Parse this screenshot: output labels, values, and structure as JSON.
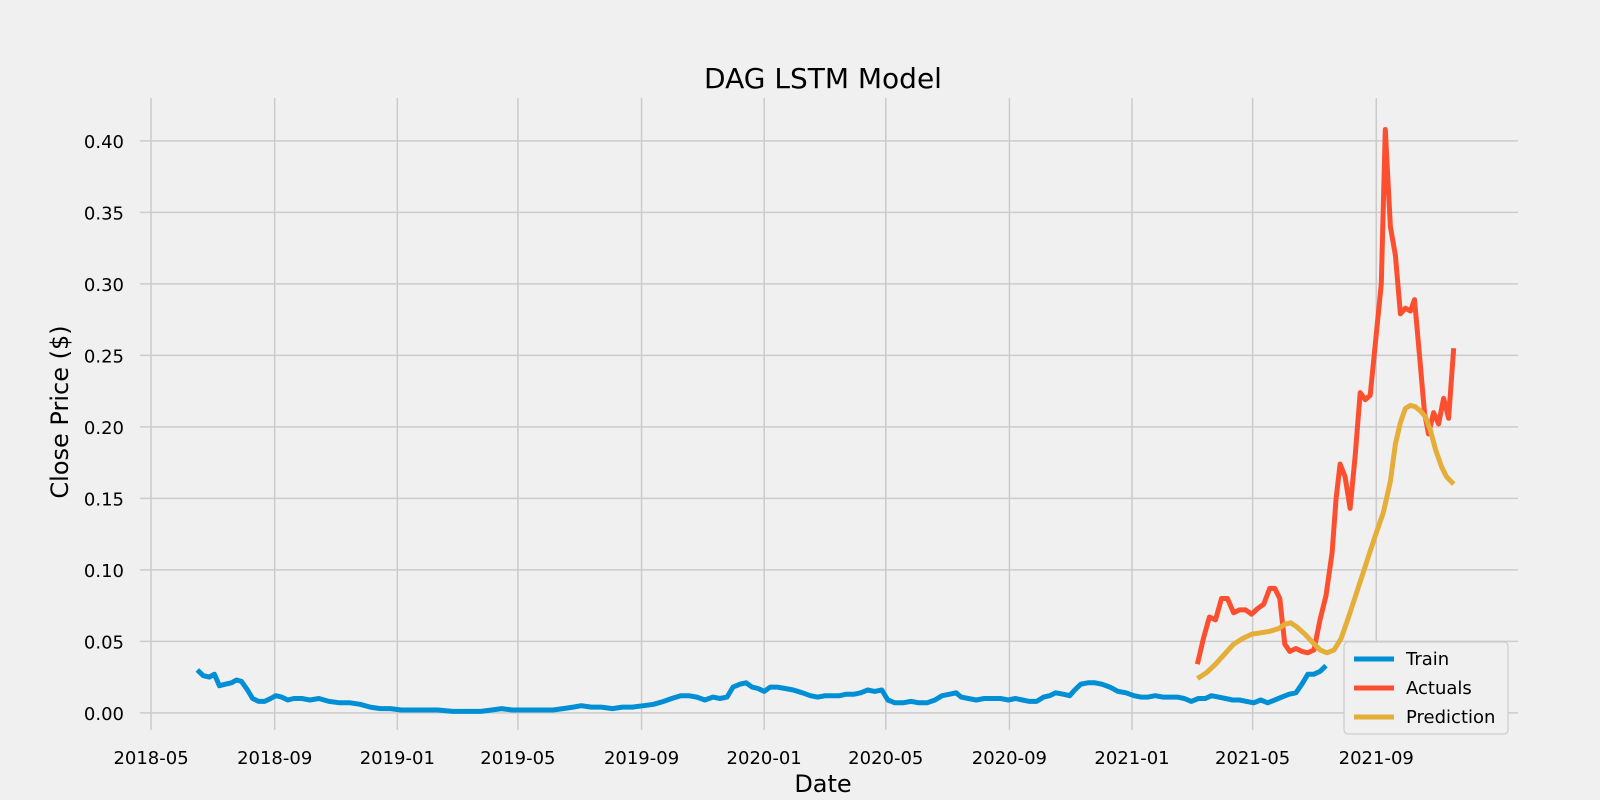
{
  "chart_data": {
    "type": "line",
    "title": "DAG LSTM Model",
    "xlabel": "Date",
    "ylabel": "Close Price ($)",
    "x_ticks": [
      "2018-05",
      "2018-09",
      "2019-01",
      "2019-05",
      "2019-09",
      "2020-01",
      "2020-05",
      "2020-09",
      "2021-01",
      "2021-05",
      "2021-09"
    ],
    "y_ticks": [
      "0.00",
      "0.05",
      "0.10",
      "0.15",
      "0.20",
      "0.25",
      "0.30",
      "0.35",
      "0.40"
    ],
    "xlim": [
      "2018-04-20",
      "2022-01-20"
    ],
    "ylim": [
      -0.012,
      0.43
    ],
    "grid": true,
    "legend_position": "lower-right",
    "colors": {
      "background": "#f0f0f0",
      "grid": "#cbcbcb"
    },
    "series": [
      {
        "name": "Train",
        "color": "#008fd5",
        "points": [
          [
            "2018-06-16",
            0.03
          ],
          [
            "2018-06-22",
            0.026
          ],
          [
            "2018-06-28",
            0.025
          ],
          [
            "2018-07-03",
            0.027
          ],
          [
            "2018-07-08",
            0.019
          ],
          [
            "2018-07-14",
            0.02
          ],
          [
            "2018-07-20",
            0.021
          ],
          [
            "2018-07-25",
            0.023
          ],
          [
            "2018-07-30",
            0.022
          ],
          [
            "2018-08-05",
            0.016
          ],
          [
            "2018-08-10",
            0.01
          ],
          [
            "2018-08-16",
            0.008
          ],
          [
            "2018-08-22",
            0.008
          ],
          [
            "2018-08-28",
            0.01
          ],
          [
            "2018-09-02",
            0.012
          ],
          [
            "2018-09-08",
            0.011
          ],
          [
            "2018-09-14",
            0.009
          ],
          [
            "2018-09-20",
            0.01
          ],
          [
            "2018-09-28",
            0.01
          ],
          [
            "2018-10-06",
            0.009
          ],
          [
            "2018-10-15",
            0.01
          ],
          [
            "2018-10-25",
            0.008
          ],
          [
            "2018-11-05",
            0.007
          ],
          [
            "2018-11-15",
            0.007
          ],
          [
            "2018-11-25",
            0.006
          ],
          [
            "2018-12-05",
            0.004
          ],
          [
            "2018-12-15",
            0.003
          ],
          [
            "2018-12-25",
            0.003
          ],
          [
            "2019-01-05",
            0.002
          ],
          [
            "2019-01-15",
            0.002
          ],
          [
            "2019-01-25",
            0.002
          ],
          [
            "2019-02-10",
            0.002
          ],
          [
            "2019-02-25",
            0.001
          ],
          [
            "2019-03-10",
            0.001
          ],
          [
            "2019-03-25",
            0.001
          ],
          [
            "2019-04-05",
            0.002
          ],
          [
            "2019-04-15",
            0.003
          ],
          [
            "2019-04-25",
            0.002
          ],
          [
            "2019-05-10",
            0.002
          ],
          [
            "2019-05-25",
            0.002
          ],
          [
            "2019-06-05",
            0.002
          ],
          [
            "2019-06-15",
            0.003
          ],
          [
            "2019-06-25",
            0.004
          ],
          [
            "2019-07-03",
            0.005
          ],
          [
            "2019-07-13",
            0.004
          ],
          [
            "2019-07-23",
            0.004
          ],
          [
            "2019-08-03",
            0.003
          ],
          [
            "2019-08-13",
            0.004
          ],
          [
            "2019-08-23",
            0.004
          ],
          [
            "2019-09-03",
            0.005
          ],
          [
            "2019-09-13",
            0.006
          ],
          [
            "2019-09-23",
            0.008
          ],
          [
            "2019-10-01",
            0.01
          ],
          [
            "2019-10-10",
            0.012
          ],
          [
            "2019-10-18",
            0.012
          ],
          [
            "2019-10-26",
            0.011
          ],
          [
            "2019-11-03",
            0.009
          ],
          [
            "2019-11-11",
            0.011
          ],
          [
            "2019-11-18",
            0.01
          ],
          [
            "2019-11-25",
            0.011
          ],
          [
            "2019-12-01",
            0.018
          ],
          [
            "2019-12-08",
            0.02
          ],
          [
            "2019-12-14",
            0.021
          ],
          [
            "2019-12-20",
            0.018
          ],
          [
            "2019-12-26",
            0.017
          ],
          [
            "2020-01-01",
            0.015
          ],
          [
            "2020-01-07",
            0.018
          ],
          [
            "2020-01-14",
            0.018
          ],
          [
            "2020-01-22",
            0.017
          ],
          [
            "2020-01-30",
            0.016
          ],
          [
            "2020-02-08",
            0.014
          ],
          [
            "2020-02-16",
            0.012
          ],
          [
            "2020-02-23",
            0.011
          ],
          [
            "2020-03-02",
            0.012
          ],
          [
            "2020-03-09",
            0.012
          ],
          [
            "2020-03-16",
            0.012
          ],
          [
            "2020-03-22",
            0.013
          ],
          [
            "2020-03-30",
            0.013
          ],
          [
            "2020-04-06",
            0.014
          ],
          [
            "2020-04-13",
            0.016
          ],
          [
            "2020-04-20",
            0.015
          ],
          [
            "2020-04-27",
            0.016
          ],
          [
            "2020-05-03",
            0.009
          ],
          [
            "2020-05-10",
            0.007
          ],
          [
            "2020-05-18",
            0.007
          ],
          [
            "2020-05-26",
            0.008
          ],
          [
            "2020-06-03",
            0.007
          ],
          [
            "2020-06-11",
            0.007
          ],
          [
            "2020-06-19",
            0.009
          ],
          [
            "2020-06-26",
            0.012
          ],
          [
            "2020-07-03",
            0.013
          ],
          [
            "2020-07-10",
            0.014
          ],
          [
            "2020-07-15",
            0.011
          ],
          [
            "2020-07-22",
            0.01
          ],
          [
            "2020-07-30",
            0.009
          ],
          [
            "2020-08-07",
            0.01
          ],
          [
            "2020-08-15",
            0.01
          ],
          [
            "2020-08-23",
            0.01
          ],
          [
            "2020-08-31",
            0.009
          ],
          [
            "2020-09-07",
            0.01
          ],
          [
            "2020-09-14",
            0.009
          ],
          [
            "2020-09-21",
            0.008
          ],
          [
            "2020-09-28",
            0.008
          ],
          [
            "2020-10-05",
            0.011
          ],
          [
            "2020-10-11",
            0.012
          ],
          [
            "2020-10-17",
            0.014
          ],
          [
            "2020-10-25",
            0.013
          ],
          [
            "2020-10-31",
            0.012
          ],
          [
            "2020-11-05",
            0.016
          ],
          [
            "2020-11-11",
            0.02
          ],
          [
            "2020-11-18",
            0.021
          ],
          [
            "2020-11-25",
            0.021
          ],
          [
            "2020-12-02",
            0.02
          ],
          [
            "2020-12-10",
            0.018
          ],
          [
            "2020-12-18",
            0.015
          ],
          [
            "2020-12-26",
            0.014
          ],
          [
            "2021-01-03",
            0.012
          ],
          [
            "2021-01-10",
            0.011
          ],
          [
            "2021-01-17",
            0.011
          ],
          [
            "2021-01-24",
            0.012
          ],
          [
            "2021-02-01",
            0.011
          ],
          [
            "2021-02-08",
            0.011
          ],
          [
            "2021-02-15",
            0.011
          ],
          [
            "2021-02-22",
            0.01
          ],
          [
            "2021-03-01",
            0.008
          ],
          [
            "2021-03-08",
            0.01
          ],
          [
            "2021-03-15",
            0.01
          ],
          [
            "2021-03-21",
            0.012
          ],
          [
            "2021-03-28",
            0.011
          ],
          [
            "2021-04-04",
            0.01
          ],
          [
            "2021-04-11",
            0.009
          ],
          [
            "2021-04-18",
            0.009
          ],
          [
            "2021-04-25",
            0.008
          ],
          [
            "2021-05-02",
            0.007
          ],
          [
            "2021-05-09",
            0.009
          ],
          [
            "2021-05-16",
            0.007
          ],
          [
            "2021-05-23",
            0.009
          ],
          [
            "2021-05-30",
            0.011
          ],
          [
            "2021-06-06",
            0.013
          ],
          [
            "2021-06-13",
            0.014
          ],
          [
            "2021-06-19",
            0.02
          ],
          [
            "2021-06-25",
            0.027
          ],
          [
            "2021-07-01",
            0.027
          ],
          [
            "2021-07-07",
            0.029
          ],
          [
            "2021-07-13",
            0.033
          ]
        ]
      },
      {
        "name": "Actuals",
        "color": "#fc4f30",
        "points": [
          [
            "2021-03-07",
            0.034
          ],
          [
            "2021-03-13",
            0.052
          ],
          [
            "2021-03-19",
            0.067
          ],
          [
            "2021-03-25",
            0.065
          ],
          [
            "2021-03-31",
            0.08
          ],
          [
            "2021-04-06",
            0.08
          ],
          [
            "2021-04-12",
            0.07
          ],
          [
            "2021-04-18",
            0.072
          ],
          [
            "2021-04-24",
            0.072
          ],
          [
            "2021-04-30",
            0.069
          ],
          [
            "2021-05-06",
            0.073
          ],
          [
            "2021-05-12",
            0.076
          ],
          [
            "2021-05-18",
            0.087
          ],
          [
            "2021-05-23",
            0.087
          ],
          [
            "2021-05-28",
            0.08
          ],
          [
            "2021-06-02",
            0.048
          ],
          [
            "2021-06-07",
            0.043
          ],
          [
            "2021-06-13",
            0.045
          ],
          [
            "2021-06-19",
            0.043
          ],
          [
            "2021-06-25",
            0.042
          ],
          [
            "2021-07-01",
            0.044
          ],
          [
            "2021-07-07",
            0.065
          ],
          [
            "2021-07-13",
            0.082
          ],
          [
            "2021-07-19",
            0.112
          ],
          [
            "2021-07-23",
            0.15
          ],
          [
            "2021-07-27",
            0.174
          ],
          [
            "2021-08-01",
            0.165
          ],
          [
            "2021-08-06",
            0.143
          ],
          [
            "2021-08-11",
            0.18
          ],
          [
            "2021-08-16",
            0.224
          ],
          [
            "2021-08-21",
            0.219
          ],
          [
            "2021-08-26",
            0.222
          ],
          [
            "2021-09-01",
            0.265
          ],
          [
            "2021-09-06",
            0.3
          ],
          [
            "2021-09-10",
            0.408
          ],
          [
            "2021-09-15",
            0.34
          ],
          [
            "2021-09-20",
            0.32
          ],
          [
            "2021-09-25",
            0.279
          ],
          [
            "2021-09-30",
            0.283
          ],
          [
            "2021-10-05",
            0.281
          ],
          [
            "2021-10-09",
            0.289
          ],
          [
            "2021-10-14",
            0.25
          ],
          [
            "2021-10-19",
            0.21
          ],
          [
            "2021-10-23",
            0.195
          ],
          [
            "2021-10-28",
            0.21
          ],
          [
            "2021-11-02",
            0.202
          ],
          [
            "2021-11-07",
            0.22
          ],
          [
            "2021-11-12",
            0.206
          ],
          [
            "2021-11-17",
            0.255
          ]
        ]
      },
      {
        "name": "Prediction",
        "color": "#e5ae38",
        "points": [
          [
            "2021-03-07",
            0.024
          ],
          [
            "2021-03-16",
            0.028
          ],
          [
            "2021-03-25",
            0.034
          ],
          [
            "2021-04-03",
            0.041
          ],
          [
            "2021-04-12",
            0.048
          ],
          [
            "2021-04-21",
            0.052
          ],
          [
            "2021-04-30",
            0.055
          ],
          [
            "2021-05-09",
            0.056
          ],
          [
            "2021-05-18",
            0.057
          ],
          [
            "2021-05-27",
            0.059
          ],
          [
            "2021-06-02",
            0.062
          ],
          [
            "2021-06-08",
            0.063
          ],
          [
            "2021-06-14",
            0.06
          ],
          [
            "2021-06-22",
            0.055
          ],
          [
            "2021-06-30",
            0.049
          ],
          [
            "2021-07-07",
            0.044
          ],
          [
            "2021-07-14",
            0.042
          ],
          [
            "2021-07-21",
            0.044
          ],
          [
            "2021-07-28",
            0.052
          ],
          [
            "2021-08-04",
            0.066
          ],
          [
            "2021-08-11",
            0.081
          ],
          [
            "2021-08-18",
            0.096
          ],
          [
            "2021-08-25",
            0.111
          ],
          [
            "2021-09-01",
            0.126
          ],
          [
            "2021-09-08",
            0.14
          ],
          [
            "2021-09-15",
            0.162
          ],
          [
            "2021-09-20",
            0.188
          ],
          [
            "2021-09-25",
            0.203
          ],
          [
            "2021-09-30",
            0.213
          ],
          [
            "2021-10-05",
            0.215
          ],
          [
            "2021-10-10",
            0.214
          ],
          [
            "2021-10-15",
            0.211
          ],
          [
            "2021-10-20",
            0.207
          ],
          [
            "2021-10-25",
            0.197
          ],
          [
            "2021-10-30",
            0.184
          ],
          [
            "2021-11-05",
            0.172
          ],
          [
            "2021-11-10",
            0.165
          ],
          [
            "2021-11-17",
            0.16
          ]
        ]
      }
    ]
  }
}
